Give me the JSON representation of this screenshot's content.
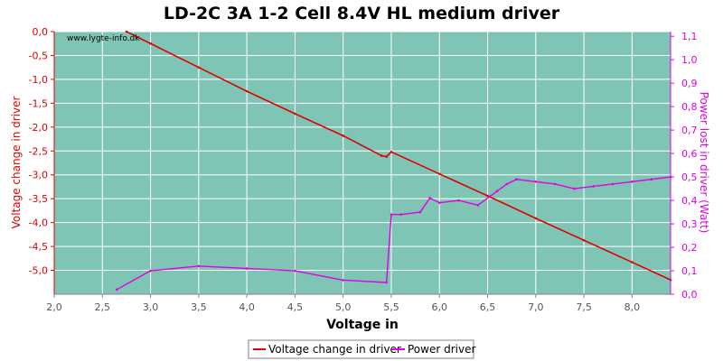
{
  "chart_data": {
    "type": "line",
    "title": "LD-2C 3A 1-2 Cell 8.4V HL medium driver",
    "watermark": "www.lygte-info.dk",
    "xlabel": "Voltage in",
    "ylabel_left": "Voltage change in driver",
    "ylabel_right": "Power lost in driver (Watt)",
    "xlim": [
      2.0,
      8.4
    ],
    "ylim_left": [
      -5.5,
      0.0
    ],
    "ylim_right": [
      0.0,
      1.12
    ],
    "x_ticks": [
      "2,0",
      "2,5",
      "3,0",
      "3,5",
      "4,0",
      "4,5",
      "5,0",
      "5,5",
      "6,0",
      "6,5",
      "7,0",
      "7,5",
      "8,0"
    ],
    "y_left_ticks": [
      "0,0",
      "-0,5",
      "-1,0",
      "-1,5",
      "-2,0",
      "-2,5",
      "-3,0",
      "-3,5",
      "-4,0",
      "-4,5",
      "-5,0"
    ],
    "y_right_ticks": [
      "0,0",
      "0,1",
      "0,2",
      "0,3",
      "0,4",
      "0,5",
      "0,6",
      "0,7",
      "0,8",
      "0,9",
      "1,0",
      "1,1"
    ],
    "grid": true,
    "legend_position": "bottom",
    "background_color": "#7fc5b5",
    "colors": {
      "voltage_change": "#e00000",
      "power": "#e000e0"
    },
    "series": [
      {
        "name": "Voltage change in driver",
        "axis": "left",
        "x": [
          2.75,
          3.0,
          3.5,
          4.0,
          4.5,
          5.0,
          5.4,
          5.45,
          5.5,
          6.0,
          6.5,
          7.0,
          7.5,
          8.0,
          8.4
        ],
        "y": [
          0.0,
          -0.25,
          -0.75,
          -1.25,
          -1.72,
          -2.18,
          -2.6,
          -2.62,
          -2.52,
          -2.98,
          -3.44,
          -3.91,
          -4.37,
          -4.83,
          -5.2
        ]
      },
      {
        "name": "Power driver",
        "axis": "right",
        "x": [
          2.65,
          3.0,
          3.5,
          4.0,
          4.5,
          5.0,
          5.45,
          5.5,
          5.6,
          5.8,
          5.9,
          6.0,
          6.2,
          6.4,
          6.6,
          6.7,
          6.8,
          7.0,
          7.2,
          7.4,
          7.6,
          7.8,
          8.0,
          8.2,
          8.4
        ],
        "y": [
          0.02,
          0.1,
          0.12,
          0.11,
          0.1,
          0.06,
          0.05,
          0.34,
          0.34,
          0.35,
          0.41,
          0.39,
          0.4,
          0.38,
          0.44,
          0.47,
          0.49,
          0.48,
          0.47,
          0.45,
          0.46,
          0.47,
          0.48,
          0.49,
          0.5
        ]
      }
    ]
  }
}
